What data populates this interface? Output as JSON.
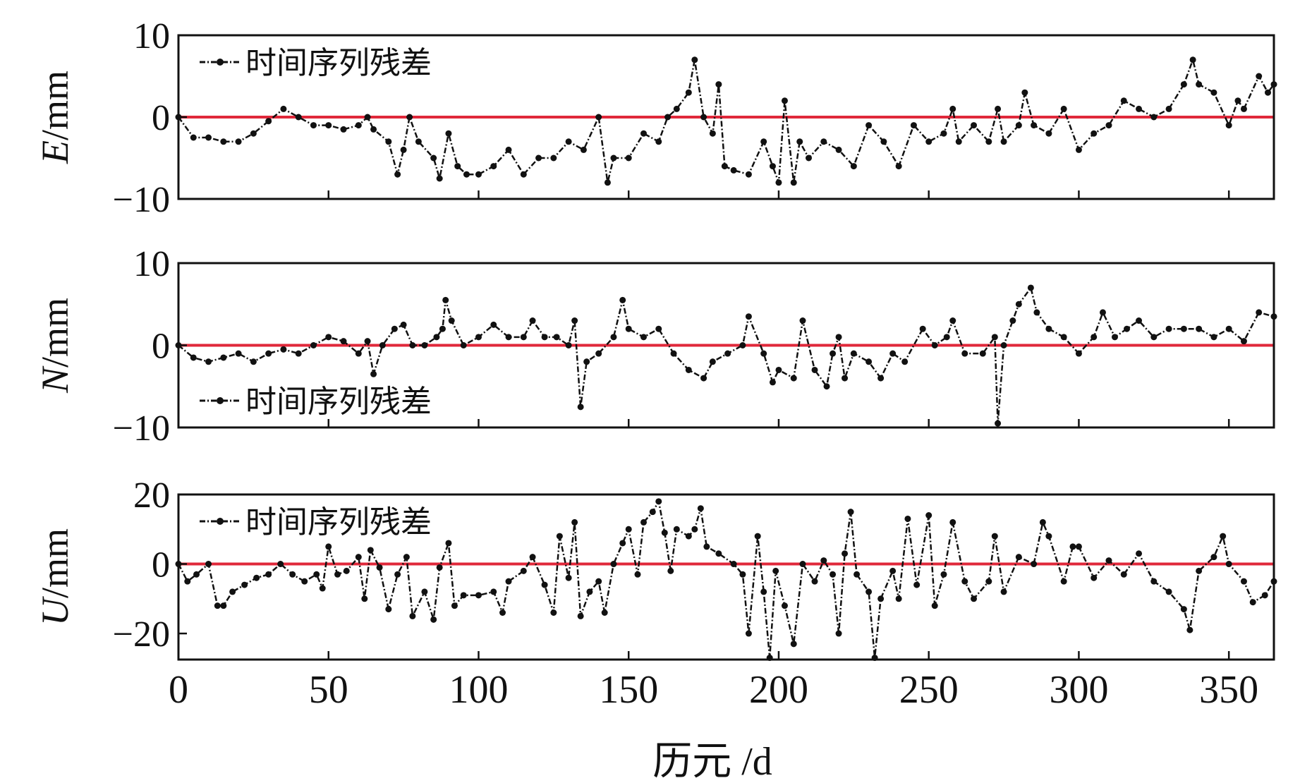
{
  "chart_data": [
    {
      "type": "line",
      "ylabel_var": "E",
      "ylabel_unit": "/mm",
      "ylim": [
        -10,
        10
      ],
      "yticks": [
        10,
        0,
        -10
      ],
      "ytick_labels": [
        "10",
        "0",
        "−10"
      ],
      "legend": "时间序列残差",
      "legend_position": "top-left",
      "reference_line": 0,
      "x": [
        0,
        5,
        10,
        15,
        20,
        25,
        30,
        35,
        40,
        45,
        50,
        55,
        60,
        63,
        65,
        70,
        73,
        75,
        77,
        80,
        85,
        87,
        90,
        93,
        96,
        100,
        105,
        110,
        115,
        120,
        125,
        130,
        135,
        140,
        143,
        145,
        150,
        155,
        160,
        163,
        166,
        170,
        172,
        175,
        178,
        180,
        182,
        185,
        190,
        195,
        198,
        200,
        202,
        205,
        207,
        210,
        215,
        220,
        225,
        230,
        235,
        240,
        245,
        250,
        255,
        258,
        260,
        265,
        270,
        273,
        275,
        280,
        282,
        285,
        290,
        295,
        300,
        305,
        310,
        315,
        320,
        325,
        330,
        335,
        338,
        340,
        345,
        350,
        353,
        355,
        360,
        363,
        365
      ],
      "values": [
        0,
        -2.5,
        -2.5,
        -3,
        -3,
        -2,
        -0.5,
        1,
        0,
        -1,
        -1,
        -1.5,
        -1,
        0,
        -1.5,
        -3,
        -7,
        -4,
        0,
        -3,
        -5,
        -7.5,
        -2,
        -6,
        -7,
        -7,
        -6,
        -4,
        -7,
        -5,
        -5,
        -3,
        -4,
        0,
        -8,
        -5,
        -5,
        -2,
        -3,
        0,
        1,
        3,
        7,
        0,
        -2,
        4,
        -6,
        -6.5,
        -7,
        -3,
        -6,
        -8,
        2,
        -8,
        -3,
        -5,
        -3,
        -4,
        -6,
        -1,
        -3,
        -6,
        -1,
        -3,
        -2,
        1,
        -3,
        -1,
        -3,
        1,
        -3,
        -1,
        3,
        -1,
        -2,
        1,
        -4,
        -2,
        -1,
        2,
        1,
        0,
        1,
        4,
        7,
        4,
        3,
        -1,
        2,
        1,
        5,
        3,
        4
      ]
    },
    {
      "type": "line",
      "ylabel_var": "N",
      "ylabel_unit": "/mm",
      "ylim": [
        -10,
        10
      ],
      "yticks": [
        10,
        0,
        -10
      ],
      "ytick_labels": [
        "10",
        "0",
        "−10"
      ],
      "legend": "时间序列残差",
      "legend_position": "bottom-left",
      "reference_line": 0,
      "x": [
        0,
        5,
        10,
        15,
        20,
        25,
        30,
        35,
        40,
        45,
        50,
        55,
        60,
        63,
        65,
        68,
        72,
        75,
        78,
        82,
        86,
        88,
        89,
        91,
        95,
        100,
        105,
        110,
        115,
        118,
        122,
        126,
        130,
        132,
        134,
        136,
        140,
        145,
        148,
        150,
        155,
        160,
        165,
        170,
        175,
        178,
        183,
        188,
        190,
        195,
        198,
        200,
        205,
        208,
        212,
        216,
        218,
        220,
        222,
        225,
        230,
        234,
        238,
        242,
        248,
        252,
        256,
        258,
        262,
        268,
        272,
        273,
        275,
        278,
        280,
        284,
        286,
        290,
        295,
        300,
        305,
        308,
        312,
        316,
        320,
        325,
        330,
        335,
        340,
        345,
        350,
        355,
        360,
        365
      ],
      "values": [
        0,
        -1.5,
        -2,
        -1.5,
        -1,
        -2,
        -1,
        -0.5,
        -1,
        0,
        1,
        0.5,
        -1,
        0.5,
        -3.5,
        0,
        2,
        2.5,
        0,
        0,
        1,
        2,
        5.5,
        3,
        0,
        1,
        2.5,
        1,
        1,
        3,
        1,
        1,
        0,
        3,
        -7.5,
        -2,
        -1,
        1,
        5.5,
        2,
        1,
        2,
        -1,
        -3,
        -4,
        -2,
        -1,
        0,
        3.5,
        -1,
        -4.5,
        -3,
        -4,
        3,
        -3,
        -5,
        -1,
        1,
        -4,
        -1,
        -2,
        -4,
        -1,
        -2,
        2,
        0,
        1,
        3,
        -1,
        -1,
        1,
        -9.5,
        0,
        3,
        5,
        7,
        4,
        2,
        1,
        -1,
        1,
        4,
        1,
        2,
        3,
        1,
        2,
        2,
        2,
        1,
        2,
        0.5,
        4,
        3.5
      ]
    },
    {
      "type": "line",
      "ylabel_var": "U",
      "ylabel_unit": "/mm",
      "ylim": [
        -27.5,
        20
      ],
      "yticks": [
        20,
        0,
        -20
      ],
      "ytick_labels": [
        "20",
        "0",
        "−20"
      ],
      "legend": "时间序列残差",
      "legend_position": "top-left",
      "reference_line": 0,
      "x": [
        0,
        3,
        6,
        10,
        13,
        15,
        18,
        22,
        26,
        30,
        34,
        38,
        42,
        46,
        48,
        50,
        53,
        56,
        60,
        62,
        64,
        67,
        70,
        73,
        76,
        78,
        82,
        85,
        87,
        90,
        92,
        95,
        100,
        105,
        108,
        110,
        115,
        118,
        122,
        125,
        127,
        130,
        132,
        134,
        137,
        140,
        142,
        145,
        148,
        150,
        153,
        155,
        158,
        160,
        162,
        164,
        166,
        170,
        172,
        174,
        176,
        180,
        185,
        188,
        190,
        193,
        195,
        197,
        199,
        202,
        205,
        208,
        212,
        215,
        218,
        220,
        222,
        224,
        226,
        230,
        232,
        234,
        238,
        240,
        243,
        246,
        250,
        252,
        255,
        258,
        262,
        265,
        270,
        272,
        275,
        280,
        285,
        288,
        290,
        295,
        298,
        300,
        305,
        310,
        315,
        320,
        325,
        330,
        335,
        337,
        340,
        345,
        348,
        350,
        355,
        358,
        362,
        365
      ],
      "values": [
        0,
        -5,
        -3,
        0,
        -12,
        -12,
        -8,
        -6,
        -4,
        -3,
        0,
        -3,
        -5,
        -3,
        -7,
        5,
        -3,
        -2,
        2,
        -10,
        4,
        -1,
        -13,
        -3,
        2,
        -15,
        -8,
        -16,
        -1,
        6,
        -12,
        -9,
        -9,
        -8,
        -14,
        -5,
        -2,
        2,
        -6,
        -14,
        8,
        -4,
        12,
        -15,
        -8,
        -5,
        -14,
        0,
        6,
        10,
        -3,
        12,
        15,
        18,
        9,
        -2,
        10,
        8,
        10,
        16,
        5,
        3,
        0,
        -3,
        -20,
        8,
        -8,
        -27,
        -2,
        -12,
        -23,
        0,
        -5,
        1,
        -3,
        -20,
        3,
        15,
        -3,
        -8,
        -27,
        -10,
        -2,
        -10,
        13,
        -6,
        14,
        -12,
        -3,
        12,
        -5,
        -10,
        -5,
        8,
        -8,
        2,
        0,
        12,
        8,
        -5,
        5,
        5,
        -4,
        1,
        -3,
        3,
        -5,
        -8,
        -13,
        -19,
        -2,
        2,
        8,
        0,
        -5,
        -11,
        -9,
        -5
      ]
    }
  ],
  "xaxis": {
    "xlim": [
      0,
      365
    ],
    "ticks": [
      0,
      50,
      100,
      150,
      200,
      250,
      300,
      350
    ],
    "tick_labels": [
      "0",
      "50",
      "100",
      "150",
      "200",
      "250",
      "300",
      "350"
    ],
    "label": "历元 /d"
  },
  "colors": {
    "series": "#111111",
    "reference_line": "#e0283a",
    "axis": "#111111"
  }
}
